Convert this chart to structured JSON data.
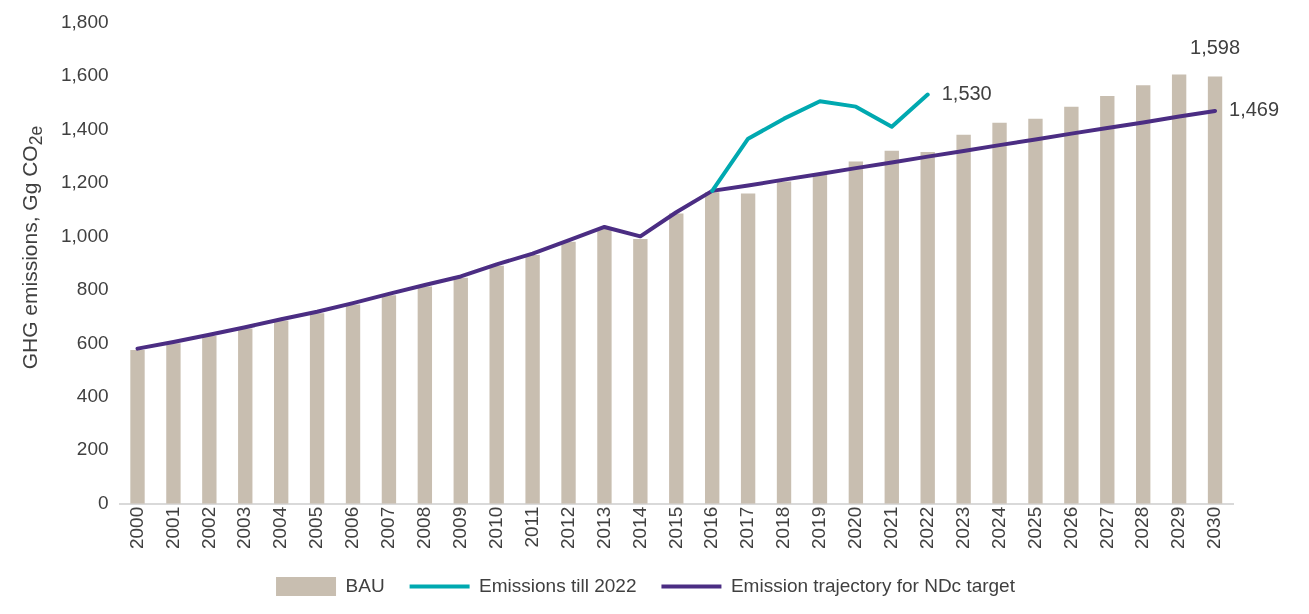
{
  "chart_data": {
    "type": "bar",
    "ylabel": "GHG emissions, Gg CO$_{2e}$",
    "categories": [
      "2000",
      "2001",
      "2002",
      "2003",
      "2004",
      "2005",
      "2006",
      "2007",
      "2008",
      "2009",
      "2010",
      "2011",
      "2012",
      "2013",
      "2014",
      "2015",
      "2016",
      "2017",
      "2018",
      "2019",
      "2020",
      "2021",
      "2022",
      "2023",
      "2024",
      "2025",
      "2026",
      "2027",
      "2028",
      "2029",
      "2030"
    ],
    "series": [
      {
        "name": "BAU",
        "color": "#c8beb0",
        "values": [
          575,
          600,
          628,
          655,
          685,
          712,
          745,
          780,
          812,
          845,
          890,
          930,
          980,
          1028,
          990,
          1085,
          1165,
          1160,
          1205,
          1235,
          1280,
          1320,
          1315,
          1380,
          1425,
          1440,
          1485,
          1525,
          1565,
          1605,
          1598
        ],
        "value_labels": [
          null,
          null,
          null,
          null,
          null,
          null,
          null,
          null,
          null,
          null,
          null,
          null,
          null,
          null,
          null,
          null,
          null,
          null,
          null,
          null,
          null,
          null,
          null,
          null,
          null,
          null,
          null,
          null,
          null,
          null,
          "1,598"
        ]
      },
      {
        "name": "Emissions till 2022",
        "type": "line",
        "color": "#00a9b0",
        "values": [
          null,
          null,
          null,
          null,
          null,
          null,
          null,
          null,
          null,
          null,
          null,
          null,
          null,
          null,
          null,
          null,
          1170,
          1365,
          1440,
          1505,
          1485,
          1410,
          1530,
          null,
          null,
          null,
          null,
          null,
          null,
          null,
          null
        ],
        "value_labels": [
          null,
          null,
          null,
          null,
          null,
          null,
          null,
          null,
          null,
          null,
          null,
          null,
          null,
          null,
          null,
          null,
          null,
          null,
          null,
          null,
          null,
          null,
          "1,530",
          null,
          null,
          null,
          null,
          null,
          null,
          null,
          null
        ]
      },
      {
        "name": "Emission trajectory for NDc target",
        "type": "line",
        "color": "#4b2d83",
        "values": [
          580,
          605,
          632,
          660,
          690,
          718,
          750,
          785,
          818,
          850,
          895,
          935,
          985,
          1035,
          1000,
          1090,
          1170,
          1190,
          1212,
          1233,
          1255,
          1276,
          1298,
          1319,
          1341,
          1362,
          1384,
          1405,
          1426,
          1448,
          1469
        ],
        "value_labels": [
          null,
          null,
          null,
          null,
          null,
          null,
          null,
          null,
          null,
          null,
          null,
          null,
          null,
          null,
          null,
          null,
          null,
          null,
          null,
          null,
          null,
          null,
          null,
          null,
          null,
          null,
          null,
          null,
          null,
          null,
          "1,469"
        ]
      }
    ],
    "ylim": [
      0,
      1800
    ],
    "yticks": [
      0,
      200,
      400,
      600,
      800,
      {
        "value": 1000,
        "label": "1,000"
      },
      {
        "value": 1200,
        "label": "1,200"
      },
      {
        "value": 1400,
        "label": "1,400"
      },
      {
        "value": 1600,
        "label": "1,600"
      },
      {
        "value": 1800,
        "label": "1,800"
      }
    ],
    "grid": false,
    "legend": "bottom",
    "marker": "none",
    "line_style": "solid"
  }
}
